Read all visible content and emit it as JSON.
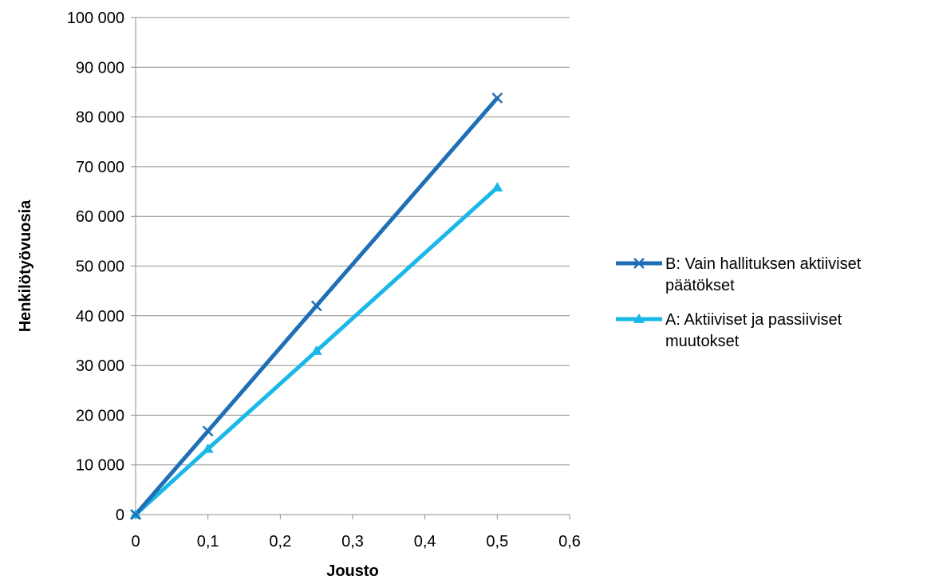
{
  "chart_data": {
    "type": "line",
    "xlabel": "Jousto",
    "ylabel": "Henkilötyövuosia",
    "xlim": [
      0,
      0.6
    ],
    "ylim": [
      0,
      100000
    ],
    "x_ticks": [
      "0",
      "0,1",
      "0,2",
      "0,3",
      "0,4",
      "0,5",
      "0,6"
    ],
    "y_ticks": [
      "0",
      "10 000",
      "20 000",
      "30 000",
      "40 000",
      "50 000",
      "60 000",
      "70 000",
      "80 000",
      "90 000",
      "100 000"
    ],
    "grid": "horizontal",
    "legend_position": "right",
    "series": [
      {
        "name": "B: Vain hallituksen aktiiviset päätökset",
        "name_lines": [
          "B: Vain hallituksen aktiiviset",
          "päätökset"
        ],
        "color": "#1f6fb6",
        "marker": "x",
        "points": [
          {
            "x": 0,
            "y": 0
          },
          {
            "x": 0.1,
            "y": 16800
          },
          {
            "x": 0.25,
            "y": 42000
          },
          {
            "x": 0.5,
            "y": 83800
          }
        ]
      },
      {
        "name": "A: Aktiiviset ja passiiviset muutokset",
        "name_lines": [
          "A: Aktiiviset ja passiiviset",
          "muutokset"
        ],
        "color": "#1ab8e8",
        "marker": "triangle",
        "points": [
          {
            "x": 0,
            "y": 0
          },
          {
            "x": 0.1,
            "y": 13200
          },
          {
            "x": 0.25,
            "y": 32900
          },
          {
            "x": 0.5,
            "y": 65800
          }
        ]
      }
    ]
  }
}
